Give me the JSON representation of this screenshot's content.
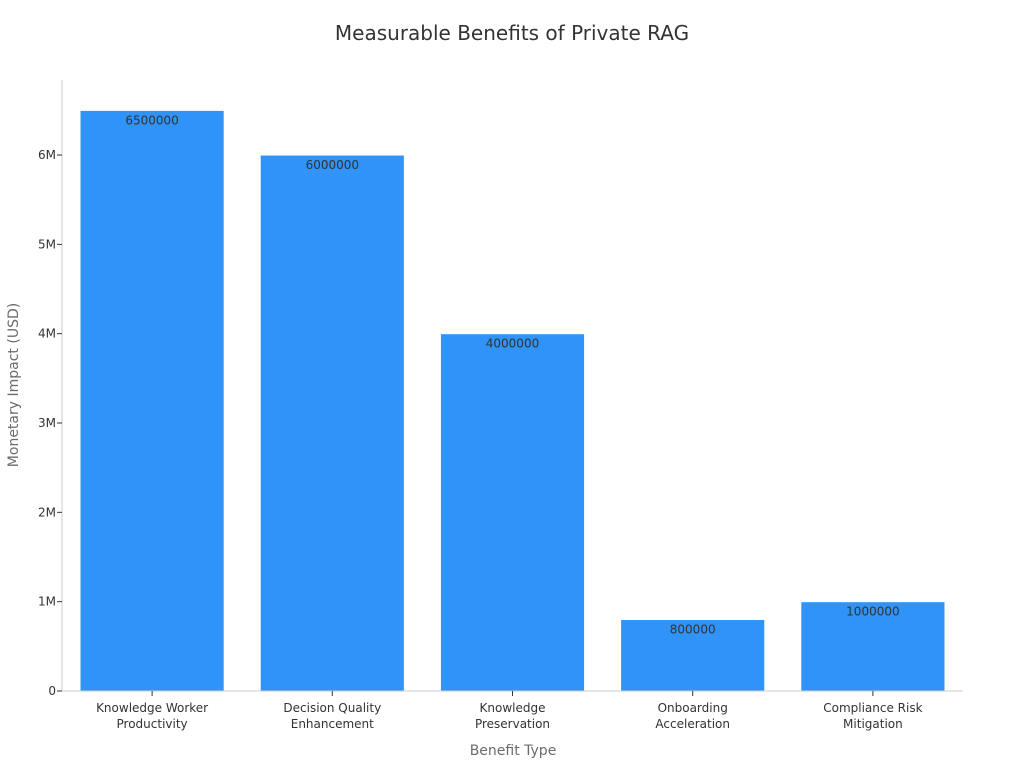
{
  "chart_data": {
    "type": "bar",
    "title": "Measurable Benefits of Private RAG",
    "xlabel": "Benefit Type",
    "ylabel": "Monetary Impact (USD)",
    "categories": [
      [
        "Knowledge Worker",
        "Productivity"
      ],
      [
        "Decision Quality",
        "Enhancement"
      ],
      [
        "Knowledge",
        "Preservation"
      ],
      [
        "Onboarding",
        "Acceleration"
      ],
      [
        "Compliance Risk",
        "Mitigation"
      ]
    ],
    "values": [
      6500000,
      6000000,
      4000000,
      800000,
      1000000
    ],
    "value_labels": [
      "6500000",
      "6000000",
      "4000000",
      "800000",
      "1000000"
    ],
    "ylim": [
      0,
      6840000
    ],
    "yticks": [
      0,
      1000000,
      2000000,
      3000000,
      4000000,
      5000000,
      6000000
    ],
    "ytick_labels": [
      "0",
      "1M",
      "2M",
      "3M",
      "4M",
      "5M",
      "6M"
    ],
    "grid": false,
    "legend": "none",
    "colors": {
      "bar": "#2f93f7",
      "bar_edge": "#ffffff",
      "axis": "#cccccc",
      "text": "#333333"
    }
  }
}
